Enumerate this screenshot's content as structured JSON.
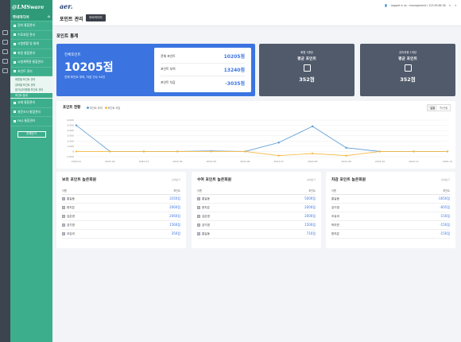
{
  "sidebar": {
    "logo": "@LMSware",
    "org_name": "뚜비미디어",
    "items": [
      {
        "label": "강좌 통합관리"
      },
      {
        "label": "수료과정 관리"
      },
      {
        "label": "시험현황 및 통계"
      },
      {
        "label": "회원 통합관리"
      },
      {
        "label": "시험계획관 통합관리"
      },
      {
        "label": "포인트 관리"
      }
    ],
    "subitems": [
      {
        "label": "회원별 포인트 관리"
      },
      {
        "label": "강좌별 포인트 관리"
      },
      {
        "label": "참가/강의평별 포인트 관리"
      },
      {
        "label": "포인트 통계"
      }
    ],
    "items2": [
      {
        "label": "교재 통합관리"
      },
      {
        "label": "설문조사 통합관리"
      },
      {
        "label": "FAQ 통합관리"
      }
    ],
    "all_button": "전체닫기"
  },
  "header": {
    "brand": "aer.",
    "user_text": "Logged in as : management / 123.63.86.36",
    "title": "포인트 관리",
    "org_button": "뚜비미디어"
  },
  "stats": {
    "section_title": "포인트 통계",
    "total_label": "전체포인트",
    "total_value": "10205점",
    "total_sub": "전체 포인트 부여, 차감 건수 54건",
    "rows": [
      {
        "label": "전체 포인트",
        "value": "10205점"
      },
      {
        "label": "포인트 부여",
        "value": "13240점"
      },
      {
        "label": "포인트 차감",
        "value": "-3035점"
      }
    ],
    "cards": [
      {
        "small": "회원 1명당",
        "big": "평균 포인트",
        "value": "352점"
      },
      {
        "small": "강의과정 1개당",
        "big": "평균 포인트",
        "value": "352점"
      }
    ]
  },
  "chart_panel": {
    "title": "포인트 현황",
    "toggle_left": "일별",
    "toggle_right": "월/연별"
  },
  "chart_data": {
    "type": "line",
    "x": [
      "2022.01",
      "2022.02",
      "2022.03",
      "2022.04",
      "2022.05",
      "2022.06",
      "2022.07",
      "2022.08",
      "2022.09",
      "2022.10",
      "2022.11",
      "2022.12"
    ],
    "yticks": [
      "6,000",
      "5,000",
      "4,000",
      "3,000",
      "2,000",
      "1,000",
      "0",
      "-1,000"
    ],
    "ylim": [
      -1000,
      6000
    ],
    "series": [
      {
        "name": "포인트 부여",
        "color": "#5b9bd5",
        "values": [
          5000,
          0,
          0,
          0,
          100,
          0,
          1700,
          4800,
          700,
          0,
          0,
          0
        ]
      },
      {
        "name": "포인트 차감",
        "color": "#f5b942",
        "values": [
          0,
          0,
          0,
          0,
          0,
          0,
          -800,
          -400,
          -800,
          0,
          0,
          0
        ]
      }
    ],
    "grid": true
  },
  "tables": [
    {
      "title": "보유 포인트 높은회원",
      "more": "상세보기",
      "col_name": "이름",
      "col_point": "포인트",
      "rows": [
        {
          "rank": "1",
          "name": "홍길동",
          "point": "3350점"
        },
        {
          "rank": "2",
          "name": "한지은",
          "point": "2060점"
        },
        {
          "rank": "3",
          "name": "김은영",
          "point": "2060점"
        },
        {
          "rank": "4",
          "name": "강기영",
          "point": "1560점"
        },
        {
          "rank": "5",
          "name": "조유리",
          "point": "350점"
        }
      ]
    },
    {
      "title": "수여 포인트 높은회원",
      "more": "상세보기",
      "col_name": "이름",
      "col_point": "포인트",
      "rows": [
        {
          "rank": "1",
          "name": "홍길동",
          "point": "5000점"
        },
        {
          "rank": "2",
          "name": "한지은",
          "point": "2000점"
        },
        {
          "rank": "3",
          "name": "김은영",
          "point": "2000점"
        },
        {
          "rank": "4",
          "name": "강기영",
          "point": "1500점"
        },
        {
          "rank": "5",
          "name": "홍길동",
          "point": "710점"
        }
      ]
    },
    {
      "title": "차감 포인트 높은회원",
      "more": "상세보기",
      "col_name": "이름",
      "col_point": "포인트",
      "rows": [
        {
          "rank": "",
          "name": "홍길동",
          "point": "-1650점"
        },
        {
          "rank": "",
          "name": "강기영",
          "point": "-605점"
        },
        {
          "rank": "",
          "name": "조유리",
          "point": "-150점"
        },
        {
          "rank": "",
          "name": "박지민",
          "point": "-150점"
        },
        {
          "rank": "",
          "name": "한지은",
          "point": "-150점"
        }
      ]
    }
  ]
}
